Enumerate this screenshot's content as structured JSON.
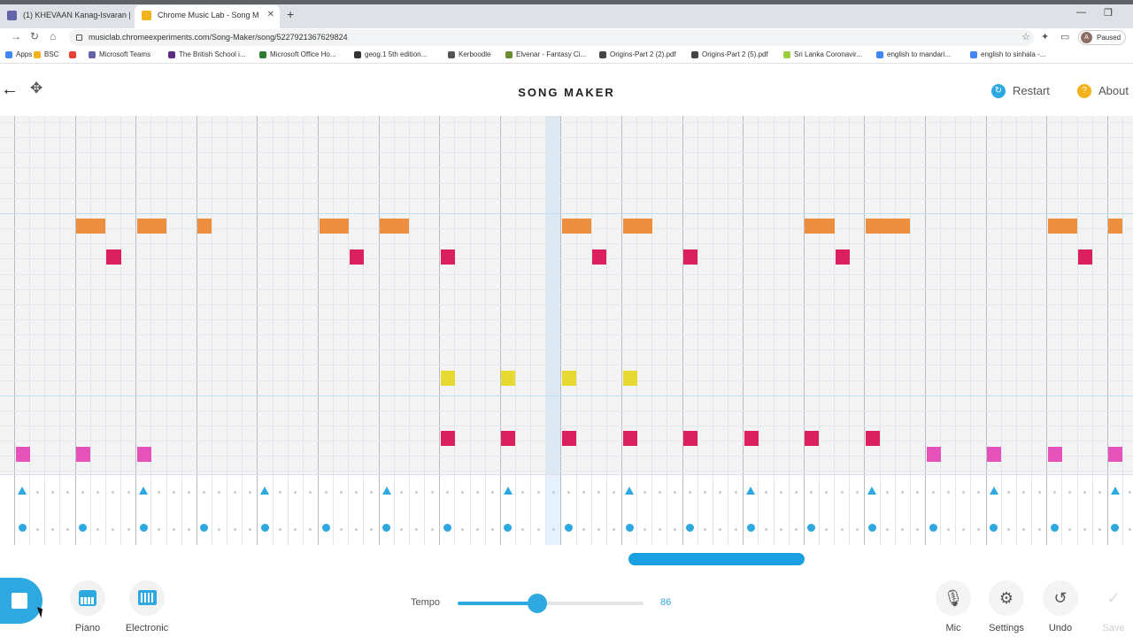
{
  "browser": {
    "tabs": [
      {
        "title": "(1) KHEVAAN Kanag-Isvaran | Mi",
        "favicon_color": "#6264a7",
        "active": false
      },
      {
        "title": "Chrome Music Lab - Song M",
        "favicon_color": "#f2b21b",
        "active": true
      }
    ],
    "url": "musiclab.chromeexperiments.com/Song-Maker/song/5227921367629824",
    "profile_initial": "A",
    "profile_status": "Paused",
    "bookmarks": [
      {
        "label": "Apps",
        "color": "#4285f4"
      },
      {
        "label": "BSC",
        "color": "#f2b21b"
      },
      {
        "label": "",
        "color": "#e94235"
      },
      {
        "label": "Microsoft Teams",
        "color": "#6264a7"
      },
      {
        "label": "The British School i...",
        "color": "#5b2c83"
      },
      {
        "label": "Microsoft Office Ho...",
        "color": "#2e7d32"
      },
      {
        "label": "geog.1 5th edition...",
        "color": "#333333"
      },
      {
        "label": "Kerboodle",
        "color": "#555555"
      },
      {
        "label": "Elvenar - Fantasy Ci...",
        "color": "#6a8d2f"
      },
      {
        "label": "Origins-Part 2 (2).pdf",
        "color": "#444444"
      },
      {
        "label": "Origins-Part 2 (5).pdf",
        "color": "#444444"
      },
      {
        "label": "Sri Lanka Coronavir...",
        "color": "#9ccc3a"
      },
      {
        "label": "english to mandari...",
        "color": "#4285f4"
      },
      {
        "label": "english to sinhala -...",
        "color": "#4285f4"
      }
    ]
  },
  "header": {
    "title": "SONG MAKER",
    "restart_label": "Restart",
    "about_label": "About"
  },
  "grid": {
    "melody_colors": {
      "orange": "#ee8e3f",
      "crimson": "#dc1f5e",
      "yellow": "#e6d930",
      "pink": "#e552b9",
      "purple": "#6a2bc9"
    },
    "notes": [
      {
        "step": 5,
        "row": 2,
        "len": 2,
        "color": "orange"
      },
      {
        "step": 9,
        "row": 2,
        "len": 2,
        "color": "orange"
      },
      {
        "step": 13,
        "row": 2,
        "len": 1,
        "color": "orange"
      },
      {
        "step": 21,
        "row": 2,
        "len": 2,
        "color": "orange"
      },
      {
        "step": 25,
        "row": 2,
        "len": 2,
        "color": "orange"
      },
      {
        "step": 37,
        "row": 2,
        "len": 2,
        "color": "orange"
      },
      {
        "step": 41,
        "row": 2,
        "len": 2,
        "color": "orange"
      },
      {
        "step": 53,
        "row": 2,
        "len": 2,
        "color": "orange"
      },
      {
        "step": 57,
        "row": 2,
        "len": 3,
        "color": "orange"
      },
      {
        "step": 69,
        "row": 2,
        "len": 2,
        "color": "orange"
      },
      {
        "step": 73,
        "row": 2,
        "len": 1,
        "color": "orange"
      },
      {
        "step": 7,
        "row": 3,
        "len": 1,
        "color": "crimson"
      },
      {
        "step": 23,
        "row": 3,
        "len": 1,
        "color": "crimson"
      },
      {
        "step": 29,
        "row": 3,
        "len": 1,
        "color": "crimson"
      },
      {
        "step": 39,
        "row": 3,
        "len": 1,
        "color": "crimson"
      },
      {
        "step": 45,
        "row": 3,
        "len": 1,
        "color": "crimson"
      },
      {
        "step": 55,
        "row": 3,
        "len": 1,
        "color": "crimson"
      },
      {
        "step": 71,
        "row": 3,
        "len": 1,
        "color": "crimson"
      },
      {
        "step": 29,
        "row": 7,
        "len": 1,
        "color": "yellow"
      },
      {
        "step": 33,
        "row": 7,
        "len": 1,
        "color": "yellow"
      },
      {
        "step": 37,
        "row": 7,
        "len": 1,
        "color": "yellow"
      },
      {
        "step": 41,
        "row": 7,
        "len": 1,
        "color": "yellow"
      },
      {
        "step": 29,
        "row": 9,
        "len": 1,
        "color": "crimson"
      },
      {
        "step": 33,
        "row": 9,
        "len": 1,
        "color": "crimson"
      },
      {
        "step": 37,
        "row": 9,
        "len": 1,
        "color": "crimson"
      },
      {
        "step": 41,
        "row": 9,
        "len": 1,
        "color": "crimson"
      },
      {
        "step": 45,
        "row": 9,
        "len": 1,
        "color": "crimson"
      },
      {
        "step": 49,
        "row": 9,
        "len": 1,
        "color": "crimson"
      },
      {
        "step": 53,
        "row": 9,
        "len": 1,
        "color": "crimson"
      },
      {
        "step": 57,
        "row": 9,
        "len": 1,
        "color": "crimson"
      },
      {
        "step": 1,
        "row": 9.5,
        "len": 1,
        "color": "pink"
      },
      {
        "step": 5,
        "row": 9.5,
        "len": 1,
        "color": "pink"
      },
      {
        "step": 9,
        "row": 9.5,
        "len": 1,
        "color": "pink"
      },
      {
        "step": 61,
        "row": 9.5,
        "len": 1,
        "color": "pink"
      },
      {
        "step": 65,
        "row": 9.5,
        "len": 1,
        "color": "pink"
      },
      {
        "step": 69,
        "row": 9.5,
        "len": 1,
        "color": "pink"
      },
      {
        "step": 73,
        "row": 9.5,
        "len": 1,
        "color": "pink"
      },
      {
        "step": 13,
        "row": 10.5,
        "len": 1,
        "color": "purple"
      },
      {
        "step": 17,
        "row": 10.5,
        "len": 1,
        "color": "purple"
      },
      {
        "step": 21,
        "row": 10.5,
        "len": 1,
        "color": "purple"
      },
      {
        "step": 25,
        "row": 10.5,
        "len": 1,
        "color": "purple"
      },
      {
        "step": 29,
        "row": 10.5,
        "len": 1,
        "color": "purple"
      },
      {
        "step": 33,
        "row": 10.5,
        "len": 1,
        "color": "purple"
      },
      {
        "step": 37,
        "row": 10.5,
        "len": 1,
        "color": "purple"
      },
      {
        "step": 41,
        "row": 10.5,
        "len": 1,
        "color": "purple"
      }
    ],
    "playhead_step": 36,
    "percussion_tri_steps": [
      1,
      9,
      17,
      25,
      33,
      41,
      49,
      57,
      65,
      73
    ],
    "percussion_dot_steps": [
      1,
      5,
      9,
      13,
      17,
      21,
      25,
      29,
      33,
      37,
      41,
      45,
      49,
      53,
      57,
      61,
      65,
      69,
      73
    ],
    "accent_color": "#2ea8e0"
  },
  "controls": {
    "piano_label": "Piano",
    "electronic_label": "Electronic",
    "tempo_label": "Tempo",
    "tempo_value": "86",
    "tempo_fraction": 0.43,
    "mic_label": "Mic",
    "settings_label": "Settings",
    "undo_label": "Undo",
    "save_label": "Save"
  }
}
